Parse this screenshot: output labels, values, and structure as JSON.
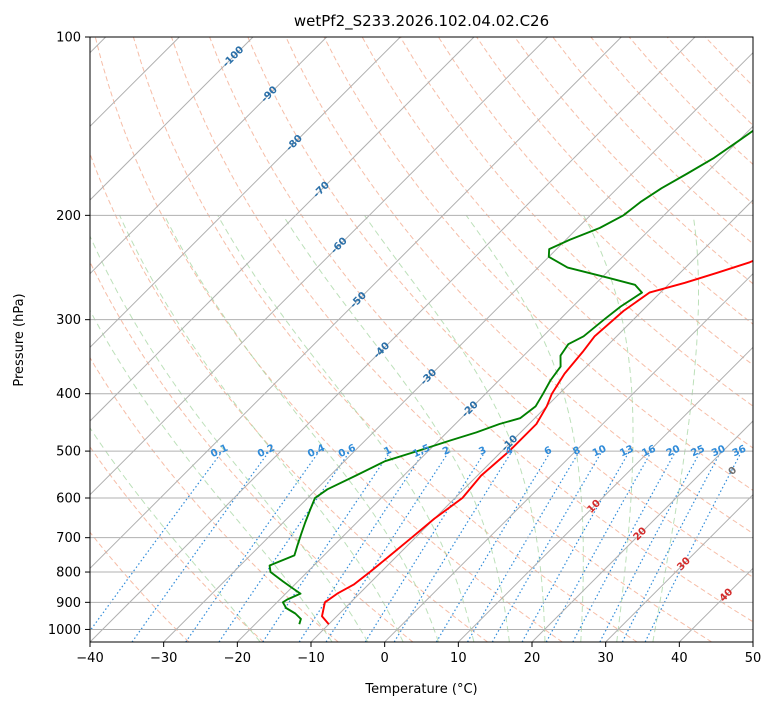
{
  "chart_data": {
    "type": "line",
    "title": "wetPf2_S233.2026.102.04.02.C26",
    "xlabel": "Temperature (°C)",
    "ylabel": "Pressure (hPa)",
    "xlim": [
      -40,
      50
    ],
    "ylim": [
      1050,
      100
    ],
    "x_ticks": [
      -40,
      -30,
      -20,
      -10,
      0,
      10,
      20,
      30,
      40,
      50
    ],
    "x_tick_labels": [
      "−40",
      "−30",
      "−20",
      "−10",
      "0",
      "10",
      "20",
      "30",
      "40",
      "50"
    ],
    "y_ticks": [
      100,
      200,
      300,
      400,
      500,
      600,
      700,
      800,
      900,
      1000
    ],
    "y_tick_labels": [
      "100",
      "200",
      "300",
      "400",
      "500",
      "600",
      "700",
      "800",
      "900",
      "1000"
    ],
    "grid": true,
    "series": [
      {
        "name": "Temperature",
        "color": "#ff0000",
        "points": [
          [
            -10,
            980
          ],
          [
            -12,
            950
          ],
          [
            -13.5,
            900
          ],
          [
            -13,
            870
          ],
          [
            -12,
            840
          ],
          [
            -11.5,
            800
          ],
          [
            -11,
            750
          ],
          [
            -10.5,
            700
          ],
          [
            -10,
            650
          ],
          [
            -9,
            600
          ],
          [
            -9.5,
            550
          ],
          [
            -9,
            500
          ],
          [
            -9,
            450
          ],
          [
            -10,
            420
          ],
          [
            -11,
            400
          ],
          [
            -12,
            370
          ],
          [
            -12.5,
            340
          ],
          [
            -13,
            320
          ],
          [
            -12.5,
            290
          ],
          [
            -11.5,
            270
          ],
          [
            -8,
            260
          ],
          [
            -5,
            250
          ],
          [
            -2,
            240
          ],
          [
            0,
            230
          ],
          [
            3,
            220
          ],
          [
            6,
            200
          ],
          [
            10,
            180
          ],
          [
            14,
            160
          ],
          [
            17,
            145
          ],
          [
            21,
            130
          ],
          [
            24,
            120
          ],
          [
            27,
            110
          ],
          [
            29,
            100
          ]
        ]
      },
      {
        "name": "Dewpoint",
        "color": "#008000",
        "points": [
          [
            -14,
            980
          ],
          [
            -14.5,
            960
          ],
          [
            -16,
            940
          ],
          [
            -18,
            920
          ],
          [
            -19.2,
            900
          ],
          [
            -19,
            890
          ],
          [
            -18,
            870
          ],
          [
            -20,
            850
          ],
          [
            -22,
            830
          ],
          [
            -25,
            800
          ],
          [
            -26,
            780
          ],
          [
            -24,
            750
          ],
          [
            -25,
            720
          ],
          [
            -26,
            690
          ],
          [
            -27,
            660
          ],
          [
            -28,
            630
          ],
          [
            -29,
            600
          ],
          [
            -28.5,
            580
          ],
          [
            -26.5,
            550
          ],
          [
            -24.5,
            520
          ],
          [
            -21.5,
            500
          ],
          [
            -18.5,
            480
          ],
          [
            -16,
            465
          ],
          [
            -14,
            450
          ],
          [
            -12,
            440
          ],
          [
            -11.5,
            420
          ],
          [
            -12.2,
            400
          ],
          [
            -13,
            380
          ],
          [
            -13.5,
            360
          ],
          [
            -15,
            345
          ],
          [
            -15.5,
            330
          ],
          [
            -14.5,
            320
          ],
          [
            -14,
            300
          ],
          [
            -13.5,
            285
          ],
          [
            -12.5,
            270
          ],
          [
            -14.5,
            262
          ],
          [
            -19,
            255
          ],
          [
            -26,
            245
          ],
          [
            -30,
            235
          ],
          [
            -31,
            228
          ],
          [
            -29.5,
            220
          ],
          [
            -27,
            210
          ],
          [
            -25.5,
            200
          ],
          [
            -25,
            190
          ],
          [
            -24,
            180
          ],
          [
            -22.5,
            170
          ],
          [
            -21,
            160
          ],
          [
            -20,
            150
          ],
          [
            -19.5,
            145
          ],
          [
            -19,
            140
          ],
          [
            -17,
            130
          ],
          [
            -15,
            120
          ],
          [
            -13.5,
            110
          ],
          [
            -12.5,
            100
          ]
        ]
      }
    ],
    "dry_adiabats": [
      -30,
      -20,
      -10,
      0,
      10,
      20,
      30,
      40,
      50,
      60,
      70,
      80,
      90,
      100,
      110,
      120,
      130,
      140,
      150,
      160,
      170,
      180
    ],
    "moist_adiabats": [
      -20,
      -10,
      -5,
      0,
      5,
      10,
      15,
      20,
      25,
      30,
      35
    ],
    "mixing_ratio_labels": [
      "0.1",
      "0.2",
      "0.4",
      "0.6",
      "1",
      "1.5",
      "2",
      "3",
      "4",
      "6",
      "8",
      "10",
      "13",
      "16",
      "20",
      "25",
      "30",
      "36"
    ],
    "mixing_ratio_values": [
      0.1,
      0.2,
      0.4,
      0.6,
      1,
      1.5,
      2,
      3,
      4,
      6,
      8,
      10,
      13,
      16,
      20,
      25,
      30,
      36
    ],
    "isotherm_labels_blue": [
      "-100",
      "-90",
      "-80",
      "-70",
      "-60",
      "-50",
      "-40",
      "-30",
      "-20",
      "-10"
    ],
    "isotherm_values_blue": [
      -100,
      -90,
      -80,
      -70,
      -60,
      -50,
      -40,
      -30,
      -20,
      -10
    ],
    "isotherm_labels_gray": [
      "0"
    ],
    "isotherm_values_gray": [
      0
    ],
    "isotherm_labels_red": [
      "10",
      "20",
      "30",
      "40"
    ],
    "isotherm_values_red": [
      10,
      20,
      30,
      40
    ]
  }
}
